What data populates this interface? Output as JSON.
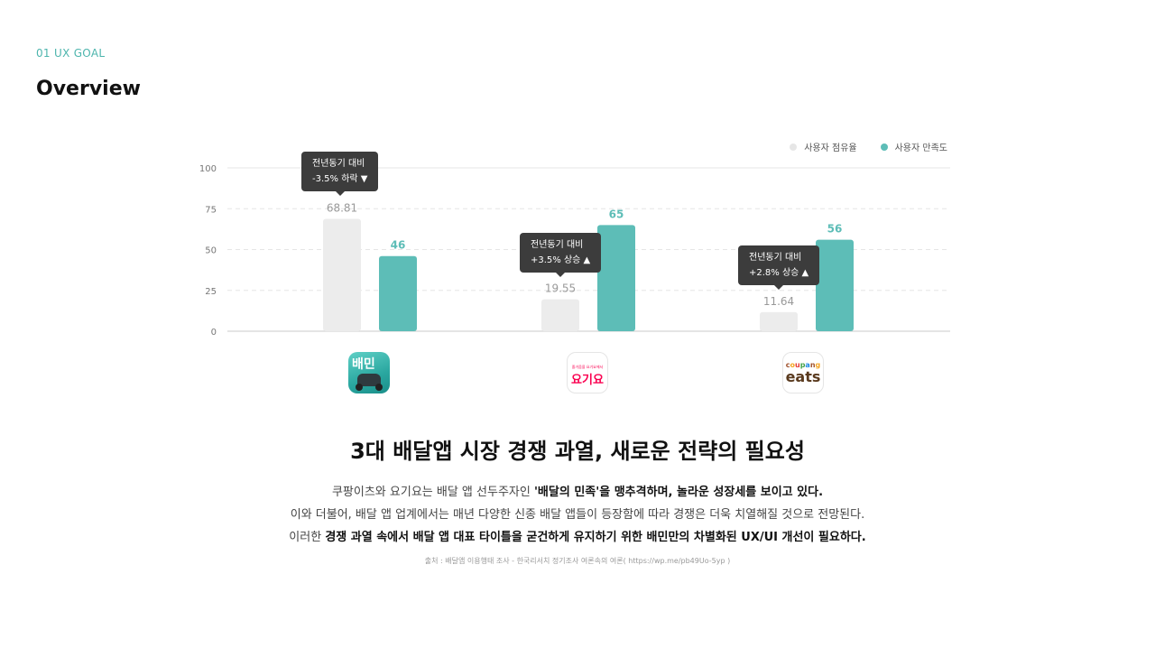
{
  "header": {
    "section_label": "01 UX GOAL",
    "title": "Overview"
  },
  "colors": {
    "accent": "#5dbdb7",
    "share_bar": "#ececec",
    "tooltip_bg": "#3c3c3c"
  },
  "chart_data": {
    "type": "bar",
    "categories": [
      "배달의민족",
      "요기요",
      "쿠팡이츠"
    ],
    "series": [
      {
        "name": "사용자 점유율",
        "color": "#e6e6e6",
        "values": [
          68.81,
          19.55,
          11.64
        ],
        "labels": [
          "68.81",
          "19.55",
          "11.64"
        ]
      },
      {
        "name": "사용자 만족도",
        "color": "#5dbdb7",
        "values": [
          46,
          65,
          56
        ],
        "labels": [
          "46",
          "65",
          "56"
        ]
      }
    ],
    "ylim": [
      0,
      100
    ],
    "yticks": [
      0,
      25,
      50,
      75,
      100
    ],
    "grid": true,
    "legend": "top-right",
    "annotations": [
      {
        "line1": "전년동기 대비",
        "line2": "-3.5% 하락 ▼"
      },
      {
        "line1": "전년동기 대비",
        "line2": "+3.5% 상승 ▲"
      },
      {
        "line1": "전년동기 대비",
        "line2": "+2.8% 상승 ▲"
      }
    ]
  },
  "apps": [
    {
      "icon": "baemin-app-icon",
      "text": "배민"
    },
    {
      "icon": "yogiyo-app-icon",
      "small": "즐거움을 요기요에서",
      "text": "요기요"
    },
    {
      "icon": "coupang-eats-app-icon",
      "top": "coupang",
      "text": "eats"
    }
  ],
  "headline": "3대 배달앱 시장 경쟁 과열, 새로운 전략의 필요성",
  "body": {
    "line1_a": "쿠팡이츠와 요기요는 배달 앱 선두주자인 ",
    "line1_b": "'배달의 민족'을 맹추격하며, 놀라운 성장세를 보이고 있다.",
    "line2": "이와 더불어, 배달 앱 업계에서는 매년 다양한 신종 배달 앱들이 등장함에 따라 경쟁은 더욱 치열해질 것으로 전망된다.",
    "line3_a": "이러한 ",
    "line3_b": "경쟁 과열 속에서 배달 앱 대표 타이틀을 굳건하게 유지하기 위한 배민만의 차별화된 UX/UI 개선이 필요하다."
  },
  "source": "출처 : 배달앱 이용행태 조사 - 한국리서치 정기조사 여론속의 여론( https://wp.me/pb49Uo-5yp )"
}
